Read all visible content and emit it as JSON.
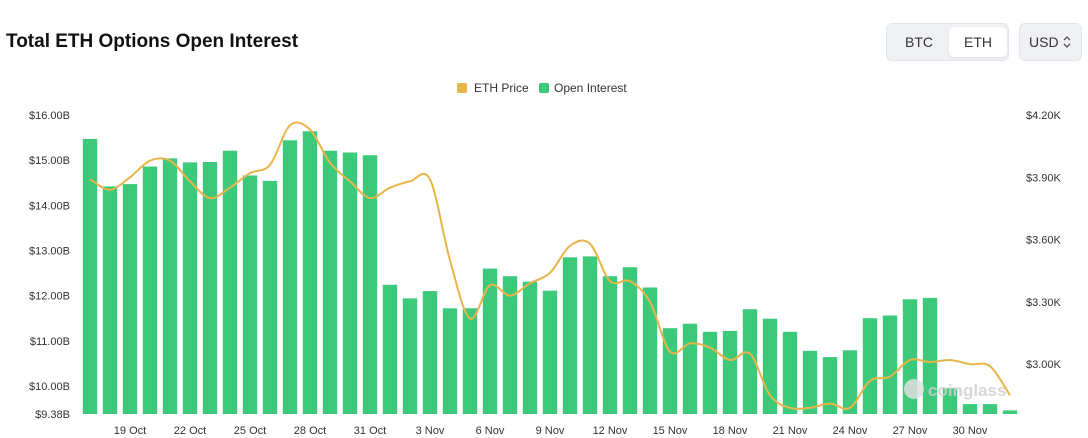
{
  "header": {
    "title": "Total ETH Options Open Interest",
    "asset_buttons": [
      "BTC",
      "ETH"
    ],
    "selected_asset": "ETH",
    "currency": "USD"
  },
  "watermark": "coinglass",
  "colors": {
    "bar": "#3cc97a",
    "line": "#e9b54a",
    "text": "#333333"
  },
  "chart_data": {
    "type": "bar",
    "title": "Total ETH Options Open Interest",
    "legend": [
      "ETH Price",
      "Open Interest"
    ],
    "legend_position": "top-center",
    "grid": false,
    "x_tick_labels": [
      "19 Oct",
      "22 Oct",
      "25 Oct",
      "28 Oct",
      "31 Oct",
      "3 Nov",
      "6 Nov",
      "9 Nov",
      "12 Nov",
      "15 Nov",
      "18 Nov",
      "21 Nov",
      "24 Nov",
      "27 Nov",
      "30 Nov"
    ],
    "y_left": {
      "label": "",
      "ticks": [
        "$9.38B",
        "$10.00B",
        "$11.00B",
        "$12.00B",
        "$13.00B",
        "$14.00B",
        "$15.00B",
        "$16.00B"
      ],
      "tick_values": [
        9.38,
        10,
        11,
        12,
        13,
        14,
        15,
        16
      ],
      "range": [
        9.38,
        16.0
      ]
    },
    "y_right": {
      "label": "",
      "ticks": [
        "$3.00K",
        "$3.30K",
        "$3.60K",
        "$3.90K",
        "$4.20K"
      ],
      "tick_values": [
        3.0,
        3.3,
        3.6,
        3.9,
        4.2
      ],
      "range": [
        2.76,
        4.2
      ]
    },
    "categories": [
      "17 Oct",
      "18 Oct",
      "19 Oct",
      "20 Oct",
      "21 Oct",
      "22 Oct",
      "23 Oct",
      "24 Oct",
      "25 Oct",
      "26 Oct",
      "27 Oct",
      "28 Oct",
      "29 Oct",
      "30 Oct",
      "31 Oct",
      "1 Nov",
      "2 Nov",
      "3 Nov",
      "4 Nov",
      "5 Nov",
      "6 Nov",
      "7 Nov",
      "8 Nov",
      "9 Nov",
      "10 Nov",
      "11 Nov",
      "12 Nov",
      "13 Nov",
      "14 Nov",
      "15 Nov",
      "16 Nov",
      "17 Nov",
      "18 Nov",
      "19 Nov",
      "20 Nov",
      "21 Nov",
      "22 Nov",
      "23 Nov",
      "24 Nov",
      "25 Nov",
      "26 Nov",
      "27 Nov",
      "28 Nov",
      "29 Nov",
      "30 Nov",
      "1 Dec",
      "2 Dec"
    ],
    "series": [
      {
        "name": "Open Interest",
        "axis": "left",
        "unit": "B USD",
        "values": [
          15.47,
          14.42,
          14.47,
          14.86,
          15.04,
          14.95,
          14.96,
          15.21,
          14.66,
          14.54,
          15.44,
          15.64,
          15.21,
          15.17,
          15.11,
          12.24,
          11.94,
          12.1,
          11.72,
          11.72,
          12.6,
          12.43,
          12.31,
          12.11,
          12.85,
          12.87,
          12.43,
          12.63,
          12.18,
          11.28,
          11.38,
          11.2,
          11.22,
          11.7,
          11.49,
          11.2,
          10.78,
          10.64,
          10.79,
          11.5,
          11.56,
          11.92,
          11.95,
          9.95,
          9.6,
          9.6,
          9.46
        ]
      },
      {
        "name": "ETH Price",
        "axis": "right",
        "unit": "K USD",
        "values": [
          3.89,
          3.84,
          3.9,
          3.98,
          3.98,
          3.88,
          3.8,
          3.85,
          3.92,
          3.96,
          4.15,
          4.13,
          3.97,
          3.88,
          3.8,
          3.85,
          3.88,
          3.89,
          3.5,
          3.22,
          3.38,
          3.33,
          3.39,
          3.44,
          3.57,
          3.58,
          3.4,
          3.4,
          3.3,
          3.06,
          3.1,
          3.08,
          3.02,
          3.05,
          2.85,
          2.79,
          2.79,
          2.81,
          2.79,
          2.92,
          2.94,
          3.02,
          3.01,
          3.02,
          3.0,
          2.99,
          2.85
        ]
      }
    ]
  }
}
